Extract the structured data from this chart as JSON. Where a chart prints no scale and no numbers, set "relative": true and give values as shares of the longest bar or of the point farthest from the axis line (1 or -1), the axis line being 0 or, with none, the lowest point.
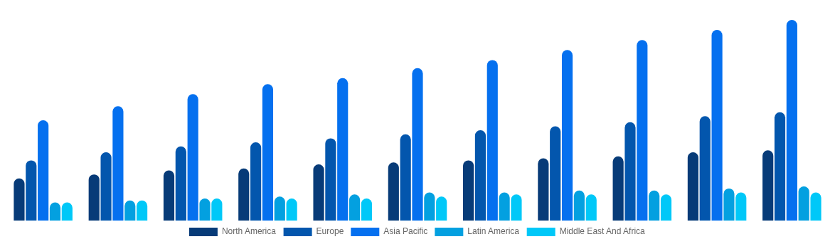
{
  "chart_data": {
    "type": "bar",
    "relative": true,
    "legend": "bottom",
    "grid": false,
    "categories": [
      null,
      null,
      null,
      null,
      null,
      null,
      null,
      null,
      null,
      null,
      null
    ],
    "series": [
      {
        "name": "North America",
        "color": "#073b78",
        "values": [
          0.21,
          0.23,
          0.25,
          0.26,
          0.28,
          0.29,
          0.3,
          0.31,
          0.32,
          0.34,
          0.35
        ]
      },
      {
        "name": "Europe",
        "color": "#0356ad",
        "values": [
          0.3,
          0.34,
          0.37,
          0.39,
          0.41,
          0.43,
          0.45,
          0.47,
          0.49,
          0.52,
          0.54
        ]
      },
      {
        "name": "Asia Pacific",
        "color": "#0570ef",
        "values": [
          0.5,
          0.57,
          0.63,
          0.68,
          0.71,
          0.76,
          0.8,
          0.85,
          0.9,
          0.95,
          1
        ]
      },
      {
        "name": "Latin America",
        "color": "#03a0e0",
        "values": [
          0.09,
          0.1,
          0.11,
          0.12,
          0.13,
          0.14,
          0.14,
          0.15,
          0.15,
          0.16,
          0.17
        ]
      },
      {
        "name": "Middle East And Africa",
        "color": "#00c8f8",
        "values": [
          0.09,
          0.1,
          0.11,
          0.11,
          0.11,
          0.12,
          0.13,
          0.13,
          0.13,
          0.14,
          0.14
        ]
      }
    ]
  }
}
